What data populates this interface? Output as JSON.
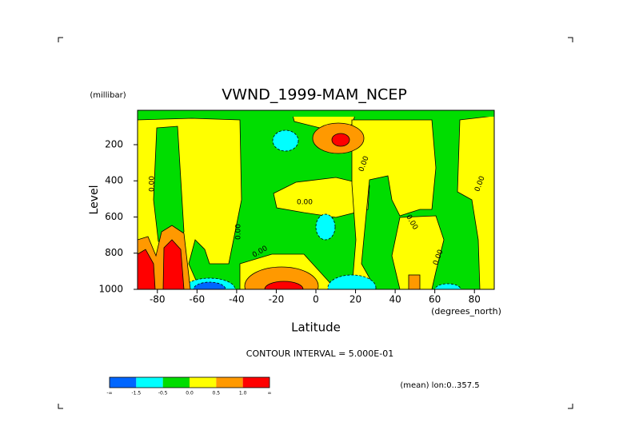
{
  "chart_data": {
    "type": "contour",
    "title": "VWND_1999-MAM_NCEP",
    "xlabel": "Latitude",
    "ylabel": "Level",
    "xunits": "(degrees_north)",
    "yunits": "(millibar)",
    "xlim": [
      -90,
      90
    ],
    "xticks": [
      -80,
      -60,
      -40,
      -20,
      0,
      20,
      40,
      60,
      80
    ],
    "ylim": [
      1000,
      10
    ],
    "yticks": [
      200,
      400,
      600,
      800,
      1000
    ],
    "contour_note": "CONTOUR INTERVAL = 5.000E-01",
    "average_note": "(mean) lon:0..357.5",
    "contour_labels": [
      "0.00",
      "0.00",
      "0.00",
      "0.00",
      "0.00",
      "0.00",
      "0.00",
      "0.00"
    ],
    "colorbar": {
      "colors": [
        "#0066ff",
        "#00ffff",
        "#00dd00",
        "#ffff00",
        "#ff9900",
        "#ff0000"
      ],
      "levels": [
        {
          "value": "-inf",
          "label": "-∞"
        },
        -1.5,
        -0.5,
        {
          "value": 0,
          "label": "0.0"
        },
        0.5,
        {
          "value": 1,
          "label": "1.0"
        },
        {
          "value": "inf",
          "label": "∞"
        }
      ]
    }
  }
}
